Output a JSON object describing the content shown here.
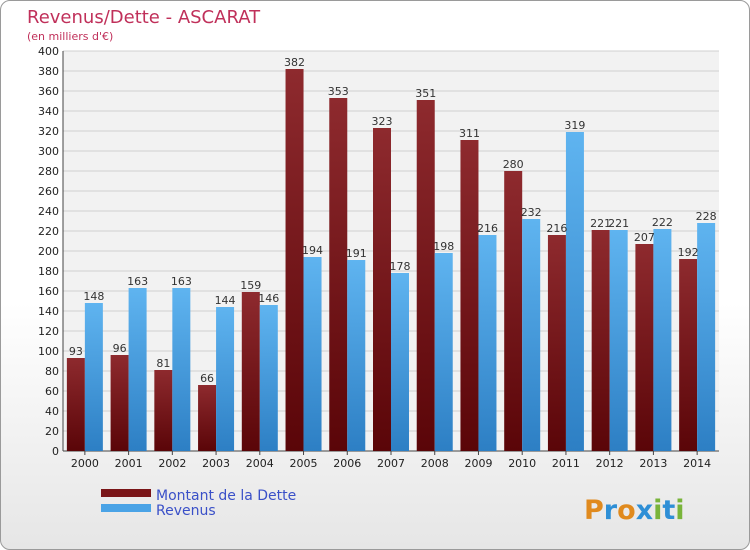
{
  "chart_data": {
    "type": "bar",
    "title": "Revenus/Dette - ASCARAT",
    "subtitle": "(en milliers d'€)",
    "categories": [
      "2000",
      "2001",
      "2002",
      "2003",
      "2004",
      "2005",
      "2006",
      "2007",
      "2008",
      "2009",
      "2010",
      "2011",
      "2012",
      "2013",
      "2014"
    ],
    "series": [
      {
        "name": "Montant de la Dette",
        "color": "#7a1518",
        "values": [
          93,
          96,
          81,
          66,
          159,
          382,
          353,
          323,
          351,
          311,
          280,
          216,
          221,
          207,
          192
        ]
      },
      {
        "name": "Revenus",
        "color": "#4aa3e6",
        "values": [
          148,
          163,
          163,
          144,
          146,
          194,
          191,
          178,
          198,
          216,
          232,
          319,
          221,
          222,
          228
        ]
      }
    ],
    "ylim": [
      0,
      400
    ],
    "ytick_step": 20,
    "grid": true,
    "legend": "bottom-left"
  },
  "brand": {
    "letters": [
      "P",
      "r",
      "o",
      "x",
      "i",
      "t",
      "i"
    ]
  }
}
